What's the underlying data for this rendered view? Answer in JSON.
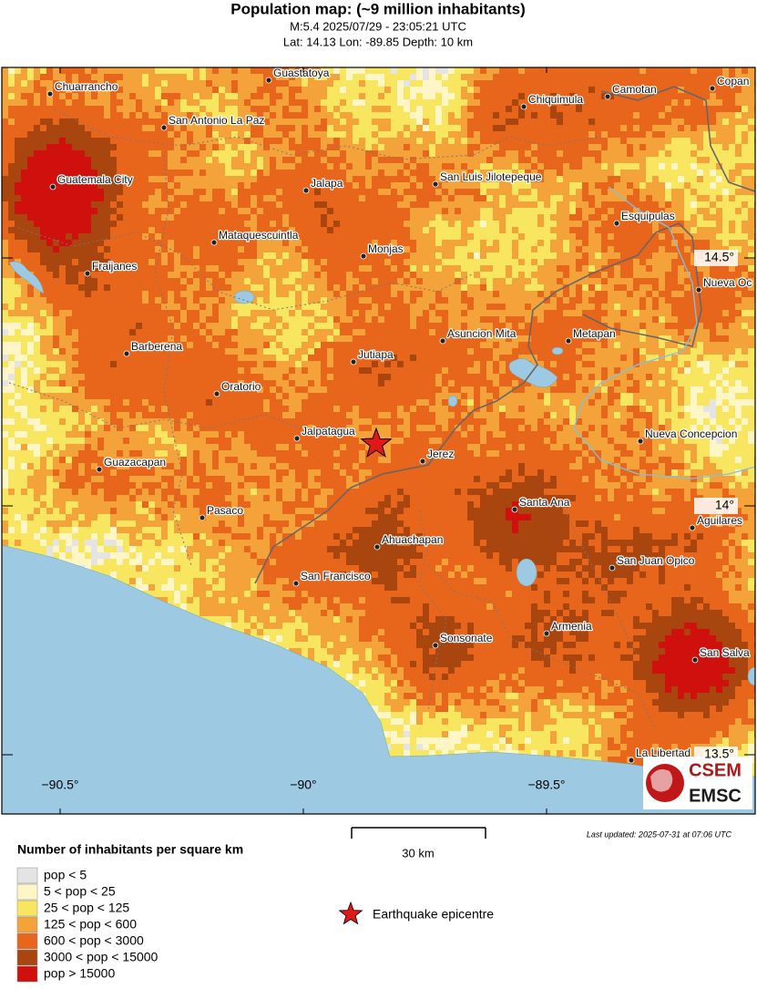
{
  "header": {
    "title": "Population map: (~9 million inhabitants)",
    "subtitle": "M:5.4 2025/07/29 - 23:05:21 UTC",
    "location": "Lat: 14.13 Lon: -89.85 Depth: 10 km"
  },
  "map": {
    "latitude_labels": [
      "14.5°",
      "14°",
      "13.5°"
    ],
    "longitude_labels": [
      "−90.5°",
      "−90°",
      "−89.5°"
    ],
    "places": [
      "Guastatoya",
      "Chuarrancho",
      "Chiquimula",
      "Camotan",
      "Copan",
      "San Antonio La Paz",
      "Guatemala City",
      "Jalapa",
      "San Luis Jilotepeque",
      "Esquipulas",
      "Mataquescuintla",
      "Monjas",
      "Fraijanes",
      "Nueva Oc",
      "Barberena",
      "Asuncion Mita",
      "Metapan",
      "Jutiapa",
      "Oratorio",
      "Jalpatagua",
      "Jerez",
      "Nueva Concepcion",
      "Guazacapan",
      "Santa Ana",
      "Aguilares",
      "Pasaco",
      "Ahuachapan",
      "San Francisco",
      "San Juan Opico",
      "Armenia",
      "Sonsonate",
      "San Salva",
      "La Libertad"
    ],
    "scale_bar": "30 km",
    "last_updated": "Last updated: 2025-07-31 at 07:06 UTC"
  },
  "legend": {
    "title": "Number of inhabitants per square km",
    "items": [
      {
        "label": "pop < 5",
        "color": "#e4e4e4"
      },
      {
        "label": "5 < pop < 25",
        "color": "#fff6c8"
      },
      {
        "label": "25 < pop < 125",
        "color": "#f8e660"
      },
      {
        "label": "125 < pop < 600",
        "color": "#f4a23a"
      },
      {
        "label": "600 < pop < 3000",
        "color": "#e8661c"
      },
      {
        "label": "3000 < pop < 15000",
        "color": "#a9450f"
      },
      {
        "label": "pop > 15000",
        "color": "#d0100c"
      }
    ],
    "epicentre": "Earthquake epicentre"
  },
  "logo": {
    "top": "CSEM",
    "bottom": "EMSC"
  }
}
